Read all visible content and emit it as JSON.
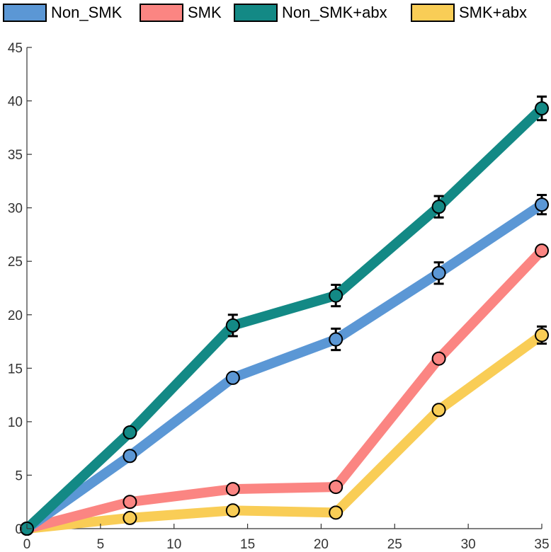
{
  "chart_data": {
    "type": "line",
    "x": [
      0,
      7,
      14,
      21,
      28,
      35
    ],
    "series": [
      {
        "name": "Non_SMK",
        "color": "#5b97d5",
        "values": [
          0,
          6.8,
          14.1,
          17.7,
          23.9,
          30.3
        ],
        "errors": [
          0,
          0,
          0,
          1.0,
          1.0,
          0.9
        ]
      },
      {
        "name": "SMK",
        "color": "#fb8582",
        "values": [
          0,
          2.5,
          3.7,
          3.9,
          15.9,
          26.0
        ],
        "errors": [
          0,
          0,
          0,
          0,
          0,
          0
        ]
      },
      {
        "name": "Non_SMK+abx",
        "color": "#138985",
        "values": [
          0,
          9.0,
          19.0,
          21.8,
          30.1,
          39.3
        ],
        "errors": [
          0,
          0,
          1.0,
          1.0,
          1.0,
          1.1
        ]
      },
      {
        "name": "SMK+abx",
        "color": "#f9cd56",
        "values": [
          0,
          1.0,
          1.7,
          1.5,
          11.1,
          18.1
        ],
        "errors": [
          0,
          0,
          0,
          0,
          0,
          0.8
        ]
      }
    ],
    "xlim": [
      0,
      35
    ],
    "ylim": [
      0,
      45
    ],
    "xticks": [
      0,
      5,
      10,
      15,
      20,
      25,
      30,
      35
    ],
    "yticks": [
      0,
      5,
      10,
      15,
      20,
      25,
      30,
      35,
      40,
      45
    ],
    "legend": "top",
    "grid": false,
    "title": "",
    "xlabel": "",
    "ylabel": ""
  }
}
